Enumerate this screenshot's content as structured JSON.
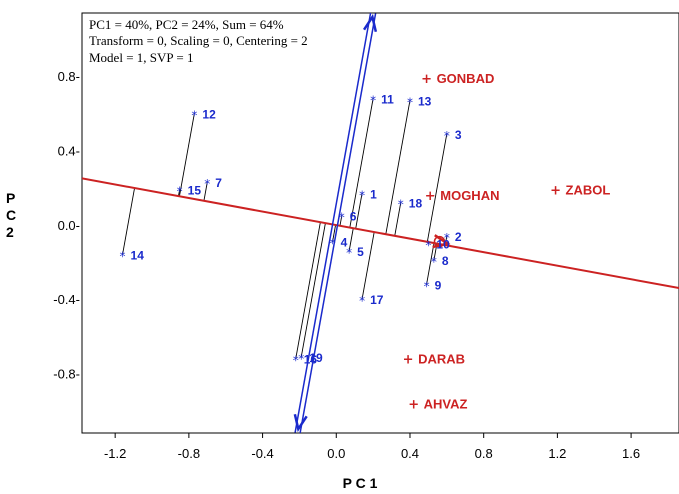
{
  "chart_data": {
    "type": "scatter",
    "info": [
      "PC1 = 40%, PC2 = 24%, Sum = 64%",
      "Transform = 0, Scaling = 0, Centering = 2",
      "Model = 1, SVP = 1"
    ],
    "xlabel": "P C 1",
    "ylabel": [
      "P",
      "C",
      "2"
    ],
    "xlim": [
      -1.38,
      1.86
    ],
    "ylim": [
      -1.12,
      1.14
    ],
    "xticks": [
      -1.2,
      -0.8,
      -0.4,
      0.0,
      0.4,
      0.8,
      1.2,
      1.6
    ],
    "xtick_labels": [
      "-1.2",
      "-0.8",
      "-0.4",
      "0.0",
      "0.4",
      "0.8",
      "1.2",
      "1.6"
    ],
    "yticks": [
      0.8,
      0.4,
      0.0,
      -0.4,
      -0.8
    ],
    "ytick_labels": [
      "0.8-",
      "0.4-",
      "0.0-",
      "-0.4-",
      "-0.8-"
    ],
    "genotype_color": "#1a2acc",
    "environment_color": "#cc2222",
    "line_color": "#000000",
    "genotypes": [
      {
        "label": "1",
        "x": 0.14,
        "y": 0.17
      },
      {
        "label": "2",
        "x": 0.6,
        "y": -0.06
      },
      {
        "label": "3",
        "x": 0.6,
        "y": 0.49
      },
      {
        "label": "4",
        "x": -0.02,
        "y": -0.09
      },
      {
        "label": "5",
        "x": 0.07,
        "y": -0.14
      },
      {
        "label": "6",
        "x": 0.03,
        "y": 0.05
      },
      {
        "label": "7",
        "x": -0.7,
        "y": 0.23
      },
      {
        "label": "8",
        "x": 0.53,
        "y": -0.19
      },
      {
        "label": "9",
        "x": 0.49,
        "y": -0.32
      },
      {
        "label": "10",
        "x": 0.5,
        "y": -0.1
      },
      {
        "label": "11",
        "x": 0.2,
        "y": 0.68
      },
      {
        "label": "12",
        "x": -0.77,
        "y": 0.6
      },
      {
        "label": "13",
        "x": 0.4,
        "y": 0.67
      },
      {
        "label": "14",
        "x": -1.16,
        "y": -0.16
      },
      {
        "label": "15",
        "x": -0.85,
        "y": 0.19
      },
      {
        "label": "16",
        "x": -0.22,
        "y": -0.72
      },
      {
        "label": "17",
        "x": 0.14,
        "y": -0.4
      },
      {
        "label": "18",
        "x": 0.35,
        "y": 0.12
      },
      {
        "label": "19",
        "x": -0.19,
        "y": -0.71
      }
    ],
    "environments": [
      {
        "label": "GONBAD",
        "x": 0.49,
        "y": 0.79
      },
      {
        "label": "MOGHAN",
        "x": 0.51,
        "y": 0.16
      },
      {
        "label": "ZABOL",
        "x": 1.19,
        "y": 0.19
      },
      {
        "label": "DARAB",
        "x": 0.39,
        "y": -0.72
      },
      {
        "label": "AHVAZ",
        "x": 0.42,
        "y": -0.96
      }
    ],
    "aec_abscissa": {
      "from": [
        -1.38,
        0.25
      ],
      "to": [
        1.86,
        -0.34
      ]
    },
    "aec_ordinate": {
      "from": [
        -0.21,
        -1.12
      ],
      "to": [
        0.2,
        1.14
      ]
    },
    "ave_environment": {
      "x": 0.56,
      "y": -0.09
    }
  }
}
